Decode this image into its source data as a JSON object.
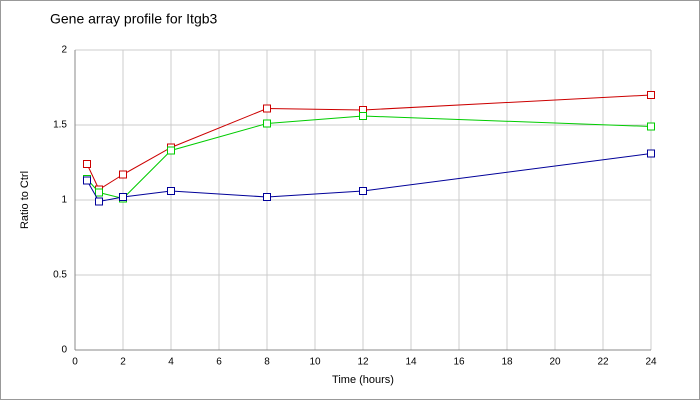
{
  "chart_data": {
    "type": "line",
    "title": "Gene array profile for Itgb3",
    "x_label": "Time (hours)",
    "y_label": "Ratio to Ctrl",
    "x": [
      0.5,
      1,
      2,
      4,
      8,
      12,
      24
    ],
    "series": [
      {
        "color": "#cc0000",
        "values": [
          1.24,
          1.07,
          1.17,
          1.35,
          1.61,
          1.6,
          1.7
        ]
      },
      {
        "color": "#00cc00",
        "values": [
          1.14,
          1.05,
          1.01,
          1.33,
          1.51,
          1.56,
          1.49
        ]
      },
      {
        "color": "#000099",
        "values": [
          1.13,
          0.99,
          1.02,
          1.06,
          1.02,
          1.06,
          1.31
        ]
      }
    ],
    "xlim": [
      0,
      24
    ],
    "xticks": [
      0,
      2,
      4,
      6,
      8,
      10,
      12,
      14,
      16,
      18,
      20,
      22,
      24
    ],
    "ylim": [
      0,
      2
    ],
    "yticks": [
      0,
      0.5,
      1,
      1.5,
      2
    ],
    "grid": true
  }
}
